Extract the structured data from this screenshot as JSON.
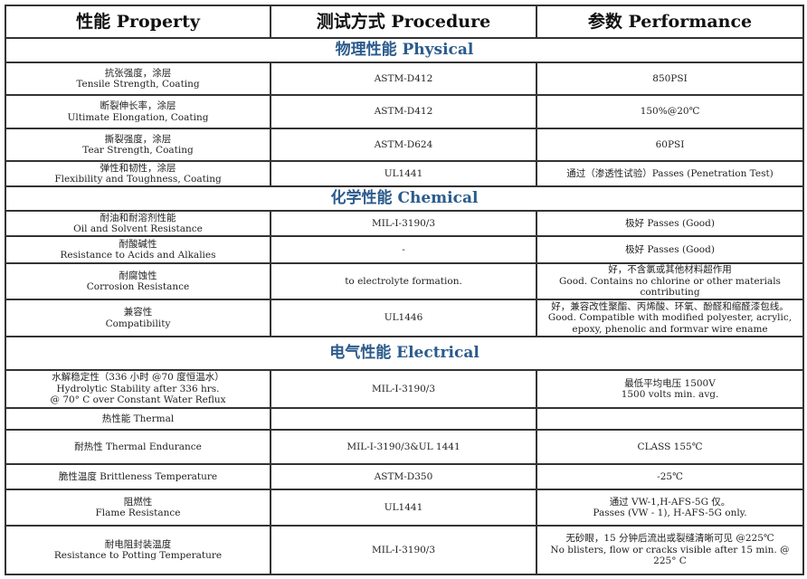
{
  "header": [
    "性能 Property",
    "测试方式 Procedure",
    "参数 Performance"
  ],
  "section_color": "#2b5b8c",
  "rows": [
    {
      "section": "物理性能 Physical"
    },
    {
      "cells": [
        [
          "抗张强度，涂层",
          "Tensile Strength, Coating"
        ],
        [
          "ASTM-D412"
        ],
        [
          "850PSI"
        ]
      ]
    },
    {
      "cells": [
        [
          "断裂伸长率，涂层",
          "Ultimate Elongation, Coating"
        ],
        [
          "ASTM-D412"
        ],
        [
          "150%@20℃"
        ]
      ]
    },
    {
      "cells": [
        [
          "撕裂强度，涂层",
          "Tear Strength, Coating"
        ],
        [
          "ASTM-D624"
        ],
        [
          "60PSI"
        ]
      ]
    },
    {
      "cells": [
        [
          "弹性和韧性，涂层",
          "Flexibility and Toughness, Coating"
        ],
        [
          "UL1441"
        ],
        [
          "通过（渗透性试验）Passes (Penetration Test)"
        ]
      ]
    },
    {
      "section": "化学性能 Chemical"
    },
    {
      "cells": [
        [
          "耐油和耐溶剂性能",
          "Oil and Solvent Resistance"
        ],
        [
          "MIL-I-3190/3"
        ],
        [
          "极好 Passes (Good)"
        ]
      ]
    },
    {
      "cells": [
        [
          "耐酸碱性",
          "Resistance to Acids and Alkalies"
        ],
        [
          "-"
        ],
        [
          "极好 Passes (Good)"
        ]
      ]
    },
    {
      "cells": [
        [
          "耐腐蚀性",
          "Corrosion Resistance"
        ],
        [
          "to electrolyte formation."
        ],
        [
          "好，不含氯或其他材料超作用",
          "Good. Contains no chlorine or other materials",
          "contributing"
        ]
      ]
    },
    {
      "cells": [
        [
          "兼容性",
          "Compatibility"
        ],
        [
          "UL1446"
        ],
        [
          "好，兼容改性聚酯、丙烯酸、环氧、酚醛和缩醛漆包线。",
          "Good. Compatible with modified polyester, acrylic,",
          "epoxy, phenolic and formvar wire ename"
        ]
      ]
    },
    {
      "section": "电气性能 Electrical"
    },
    {
      "cells": [
        [
          "水解稳定性（336 小时 @70 度恒温水）",
          "Hydrolytic Stability after 336 hrs.",
          "@ 70° C over Constant Water Reflux"
        ],
        [
          "MIL-I-3190/3"
        ],
        [
          "最低平均电压 1500V",
          "1500 volts min. avg."
        ]
      ]
    },
    {
      "cells": [
        [
          "热性能 Thermal"
        ],
        [],
        []
      ]
    },
    {
      "cells": [
        [
          "耐热性 Thermal Endurance"
        ],
        [
          "MIL-I-3190/3&UL 1441"
        ],
        [
          "CLASS 155℃"
        ]
      ]
    },
    {
      "cells": [
        [
          "脆性温度 Brittleness Temperature"
        ],
        [
          "ASTM-D350"
        ],
        [
          "-25℃"
        ]
      ]
    },
    {
      "cells": [
        [
          "阻燃性",
          "Flame Resistance"
        ],
        [
          "UL1441"
        ],
        [
          "通过 VW-1,H-AFS-5G 仅。",
          "Passes (VW - 1), H-AFS-5G only."
        ]
      ]
    },
    {
      "cells": [
        [
          "耐电阻封装温度",
          "Resistance to Potting Temperature"
        ],
        [
          "MIL-I-3190/3"
        ],
        [
          "无砂眼，15 分钟后流出或裂缝清晰可见 @225℃",
          "No blisters, flow or cracks visible after 15 min.  @",
          "225° C"
        ]
      ]
    }
  ]
}
